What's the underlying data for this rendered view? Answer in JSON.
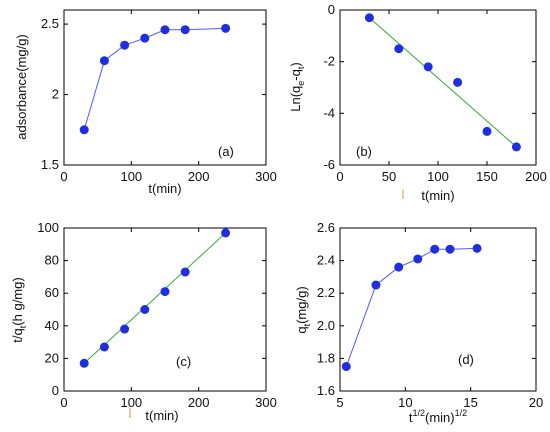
{
  "chart_data": [
    {
      "type": "line",
      "id": "a",
      "annotation": "(a)",
      "xlabel": "t(min)",
      "ylabel": "adsorbance(mg/g)",
      "xlim": [
        0,
        300
      ],
      "ylim": [
        1.5,
        2.6
      ],
      "xticks": [
        0,
        100,
        200,
        300
      ],
      "yticks": [
        1.5,
        2,
        2.5
      ],
      "line_color": "#4a5cff",
      "marker_color": "#1f2fe0",
      "series": [
        {
          "x": [
            30,
            60,
            90,
            120,
            150,
            180,
            240
          ],
          "y": [
            1.75,
            2.24,
            2.35,
            2.4,
            2.46,
            2.46,
            2.47
          ]
        }
      ]
    },
    {
      "type": "scatter",
      "id": "b",
      "annotation": "(b)",
      "xlabel": "t(min)",
      "ylabel": "Ln(qe-qt)",
      "xlim": [
        0,
        200
      ],
      "ylim": [
        -6,
        0
      ],
      "xticks": [
        0,
        50,
        100,
        150,
        200
      ],
      "yticks": [
        -6,
        -4,
        -2,
        0
      ],
      "line_color": "#3aa83a",
      "marker_color": "#1f2fe0",
      "fit": {
        "x": [
          30,
          180
        ],
        "y": [
          -0.3,
          -5.3
        ]
      },
      "series": [
        {
          "x": [
            30,
            60,
            90,
            120,
            150,
            180
          ],
          "y": [
            -0.3,
            -1.5,
            -2.2,
            -2.8,
            -4.7,
            -5.3
          ]
        }
      ]
    },
    {
      "type": "scatter",
      "id": "c",
      "annotation": "(c)",
      "xlabel": "t(min)",
      "ylabel": "t/qt(h g/mg)",
      "xlim": [
        0,
        300
      ],
      "ylim": [
        0,
        100
      ],
      "xticks": [
        0,
        100,
        200,
        300
      ],
      "yticks": [
        0,
        20,
        40,
        60,
        80,
        100
      ],
      "line_color": "#3aa83a",
      "marker_color": "#1f2fe0",
      "fit": {
        "x": [
          30,
          240
        ],
        "y": [
          17,
          97
        ]
      },
      "series": [
        {
          "x": [
            30,
            60,
            90,
            120,
            150,
            180,
            240
          ],
          "y": [
            17,
            27,
            38,
            50,
            61,
            73,
            97
          ]
        }
      ]
    },
    {
      "type": "line",
      "id": "d",
      "annotation": "(d)",
      "xlabel": "t1/2(min)1/2",
      "ylabel": "qt(mg/g)",
      "xlim": [
        5,
        20
      ],
      "ylim": [
        1.6,
        2.6
      ],
      "xticks": [
        5,
        10,
        15,
        20
      ],
      "yticks": [
        1.6,
        1.8,
        2.0,
        2.2,
        2.4,
        2.6
      ],
      "line_color": "#4a5cff",
      "marker_color": "#1f2fe0",
      "series": [
        {
          "x": [
            5.48,
            7.75,
            9.49,
            10.95,
            12.25,
            13.42,
            15.49
          ],
          "y": [
            1.75,
            2.25,
            2.36,
            2.41,
            2.47,
            2.47,
            2.475
          ]
        }
      ]
    }
  ],
  "labels": {
    "a": {
      "x": "t(min)",
      "y": "adsorbance(mg/g)",
      "ann": "(a)"
    },
    "b": {
      "x": "t(min)",
      "y_main": "Ln(q",
      "y_sub1": "e",
      "y_mid": "-q",
      "y_sub2": "t",
      "y_end": ")",
      "ann": "(b)"
    },
    "c": {
      "x": "t(min)",
      "y_main": "t/q",
      "y_sub": "t",
      "y_end": "(h g/mg)",
      "ann": "(c)"
    },
    "d": {
      "x_main": "t",
      "x_sup1": "1/2",
      "x_mid": "(min)",
      "x_sup2": "1/2",
      "y_main": "q",
      "y_sub": "t",
      "y_end": "(mg/g)",
      "ann": "(d)"
    }
  }
}
